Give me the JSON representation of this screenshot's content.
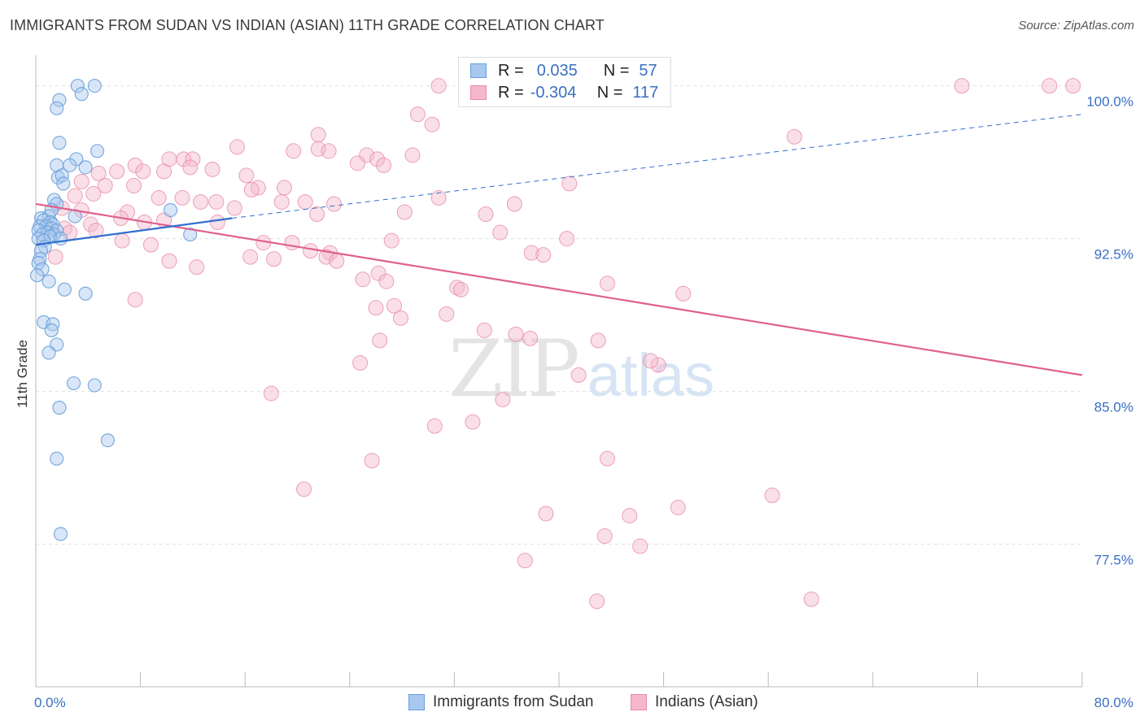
{
  "title": "IMMIGRANTS FROM SUDAN VS INDIAN (ASIAN) 11TH GRADE CORRELATION CHART",
  "source": "Source: ZipAtlas.com",
  "watermark": {
    "zip": "ZIP",
    "atlas": "atlas"
  },
  "stats": [
    {
      "r_label": "R =",
      "r_value": "0.035",
      "n_label": "N =",
      "n_value": "57"
    },
    {
      "r_label": "R =",
      "r_value": "-0.304",
      "n_label": "N =",
      "n_value": "117"
    }
  ],
  "legend": [
    {
      "label": "Immigrants from Sudan"
    },
    {
      "label": "Indians (Asian)"
    }
  ],
  "colors": {
    "sudan_fill": "#a8c8ef",
    "sudan_stroke": "#6a9fd8",
    "sudan_line": "#2f6fd0",
    "indian_fill": "#f5b8cb",
    "indian_stroke": "#e88aa8",
    "indian_line": "#e0608a",
    "tick_label": "#3a6fc4",
    "grid": "#e0e0e0"
  },
  "chart_data": {
    "type": "scatter",
    "xlabel": "",
    "ylabel": "11th Grade",
    "xlim": [
      0,
      80
    ],
    "ylim": [
      70.5,
      101.5
    ],
    "x_tick_labels": [
      {
        "value": 0,
        "label": "0.0%"
      },
      {
        "value": 80,
        "label": "80.0%"
      }
    ],
    "y_tick_labels": [
      {
        "value": 100,
        "label": "100.0%"
      },
      {
        "value": 92.5,
        "label": "92.5%"
      },
      {
        "value": 85,
        "label": "85.0%"
      },
      {
        "value": 77.5,
        "label": "77.5%"
      }
    ],
    "grid": true,
    "series": [
      {
        "name": "Immigrants from Sudan",
        "trend": {
          "solid": [
            [
              0,
              92.2
            ],
            [
              15,
              93.5
            ]
          ],
          "dashed": [
            [
              15,
              93.5
            ],
            [
              80,
              98.6
            ]
          ]
        },
        "points": [
          [
            3.2,
            100.0
          ],
          [
            4.5,
            100.0
          ],
          [
            1.8,
            99.3
          ],
          [
            3.5,
            99.6
          ],
          [
            1.6,
            98.9
          ],
          [
            1.8,
            97.2
          ],
          [
            4.7,
            96.8
          ],
          [
            3.1,
            96.4
          ],
          [
            1.6,
            96.1
          ],
          [
            2.6,
            96.1
          ],
          [
            3.8,
            96.0
          ],
          [
            1.7,
            95.5
          ],
          [
            2.0,
            95.6
          ],
          [
            2.1,
            95.2
          ],
          [
            1.4,
            94.4
          ],
          [
            1.6,
            94.2
          ],
          [
            1.2,
            93.9
          ],
          [
            1.0,
            93.6
          ],
          [
            3.0,
            93.6
          ],
          [
            0.4,
            93.5
          ],
          [
            0.6,
            93.4
          ],
          [
            1.1,
            93.3
          ],
          [
            1.3,
            93.2
          ],
          [
            0.3,
            93.1
          ],
          [
            0.8,
            93.1
          ],
          [
            1.2,
            93.0
          ],
          [
            1.6,
            92.9
          ],
          [
            0.2,
            92.9
          ],
          [
            0.9,
            92.8
          ],
          [
            1.4,
            92.7
          ],
          [
            0.5,
            92.7
          ],
          [
            1.1,
            92.6
          ],
          [
            0.2,
            92.5
          ],
          [
            0.6,
            92.4
          ],
          [
            1.9,
            92.5
          ],
          [
            0.7,
            92.1
          ],
          [
            0.4,
            91.9
          ],
          [
            0.3,
            91.5
          ],
          [
            0.2,
            91.3
          ],
          [
            0.5,
            91.0
          ],
          [
            1.0,
            90.4
          ],
          [
            2.2,
            90.0
          ],
          [
            3.8,
            89.8
          ],
          [
            0.6,
            88.4
          ],
          [
            1.3,
            88.3
          ],
          [
            1.2,
            88.0
          ],
          [
            1.6,
            87.3
          ],
          [
            1.0,
            86.9
          ],
          [
            2.9,
            85.4
          ],
          [
            4.5,
            85.3
          ],
          [
            1.8,
            84.2
          ],
          [
            5.5,
            82.6
          ],
          [
            1.6,
            81.7
          ],
          [
            1.9,
            78.0
          ],
          [
            10.3,
            93.9
          ],
          [
            11.8,
            92.7
          ],
          [
            0.1,
            90.7
          ]
        ]
      },
      {
        "name": "Indians (Asian)",
        "trend": {
          "solid": [
            [
              0,
              94.2
            ],
            [
              80,
              85.8
            ]
          ]
        },
        "points": [
          [
            30.8,
            100.0
          ],
          [
            46.8,
            100.0
          ],
          [
            70.8,
            100.0
          ],
          [
            77.5,
            100.0
          ],
          [
            79.3,
            100.0
          ],
          [
            29.2,
            98.6
          ],
          [
            30.3,
            98.1
          ],
          [
            21.6,
            97.6
          ],
          [
            15.4,
            97.0
          ],
          [
            19.7,
            96.8
          ],
          [
            21.6,
            96.9
          ],
          [
            22.4,
            96.8
          ],
          [
            28.8,
            96.6
          ],
          [
            10.2,
            96.4
          ],
          [
            11.3,
            96.4
          ],
          [
            12.0,
            96.4
          ],
          [
            25.3,
            96.6
          ],
          [
            26.1,
            96.4
          ],
          [
            24.6,
            96.2
          ],
          [
            26.6,
            96.1
          ],
          [
            7.6,
            96.1
          ],
          [
            11.8,
            96.0
          ],
          [
            13.5,
            95.9
          ],
          [
            16.1,
            95.6
          ],
          [
            8.2,
            95.8
          ],
          [
            9.8,
            95.8
          ],
          [
            4.8,
            95.7
          ],
          [
            6.2,
            95.8
          ],
          [
            3.5,
            95.3
          ],
          [
            5.3,
            95.1
          ],
          [
            7.5,
            95.1
          ],
          [
            17.0,
            95.0
          ],
          [
            19.0,
            95.0
          ],
          [
            16.5,
            94.9
          ],
          [
            30.8,
            94.5
          ],
          [
            3.0,
            94.6
          ],
          [
            4.4,
            94.7
          ],
          [
            9.4,
            94.5
          ],
          [
            11.2,
            94.5
          ],
          [
            12.6,
            94.3
          ],
          [
            13.8,
            94.3
          ],
          [
            18.8,
            94.3
          ],
          [
            20.6,
            94.3
          ],
          [
            22.8,
            94.2
          ],
          [
            36.6,
            94.2
          ],
          [
            40.8,
            95.2
          ],
          [
            15.2,
            94.0
          ],
          [
            7.0,
            93.8
          ],
          [
            3.5,
            93.9
          ],
          [
            2.0,
            94.0
          ],
          [
            21.5,
            93.7
          ],
          [
            34.4,
            93.7
          ],
          [
            28.2,
            93.8
          ],
          [
            6.5,
            93.5
          ],
          [
            9.8,
            93.4
          ],
          [
            8.3,
            93.3
          ],
          [
            13.9,
            93.3
          ],
          [
            4.2,
            93.2
          ],
          [
            2.2,
            93.0
          ],
          [
            4.6,
            92.9
          ],
          [
            2.6,
            92.8
          ],
          [
            35.5,
            92.8
          ],
          [
            40.6,
            92.5
          ],
          [
            27.2,
            92.4
          ],
          [
            17.4,
            92.3
          ],
          [
            19.6,
            92.3
          ],
          [
            6.6,
            92.4
          ],
          [
            8.8,
            92.2
          ],
          [
            21.0,
            91.9
          ],
          [
            22.5,
            91.8
          ],
          [
            37.9,
            91.8
          ],
          [
            38.8,
            91.7
          ],
          [
            16.4,
            91.6
          ],
          [
            22.2,
            91.6
          ],
          [
            18.2,
            91.5
          ],
          [
            23.0,
            91.4
          ],
          [
            10.2,
            91.4
          ],
          [
            12.3,
            91.1
          ],
          [
            1.5,
            91.6
          ],
          [
            26.2,
            90.8
          ],
          [
            25.0,
            90.5
          ],
          [
            26.8,
            90.4
          ],
          [
            32.2,
            90.1
          ],
          [
            32.5,
            90.0
          ],
          [
            49.5,
            89.8
          ],
          [
            7.6,
            89.5
          ],
          [
            27.4,
            89.2
          ],
          [
            26.0,
            89.1
          ],
          [
            31.4,
            88.8
          ],
          [
            27.9,
            88.6
          ],
          [
            34.3,
            88.0
          ],
          [
            36.7,
            87.8
          ],
          [
            37.8,
            87.6
          ],
          [
            43.0,
            87.5
          ],
          [
            26.3,
            87.5
          ],
          [
            24.8,
            86.4
          ],
          [
            47.6,
            86.3
          ],
          [
            41.5,
            85.8
          ],
          [
            18.0,
            84.9
          ],
          [
            35.7,
            84.6
          ],
          [
            33.4,
            83.5
          ],
          [
            30.5,
            83.3
          ],
          [
            43.7,
            81.7
          ],
          [
            25.7,
            81.6
          ],
          [
            20.5,
            80.2
          ],
          [
            56.3,
            79.9
          ],
          [
            49.1,
            79.3
          ],
          [
            39.0,
            79.0
          ],
          [
            45.4,
            78.9
          ],
          [
            43.5,
            77.9
          ],
          [
            46.2,
            77.4
          ],
          [
            37.4,
            76.7
          ],
          [
            42.9,
            74.7
          ],
          [
            59.3,
            74.8
          ],
          [
            43.7,
            90.3
          ],
          [
            47.0,
            86.5
          ],
          [
            58.0,
            97.5
          ]
        ]
      }
    ]
  }
}
